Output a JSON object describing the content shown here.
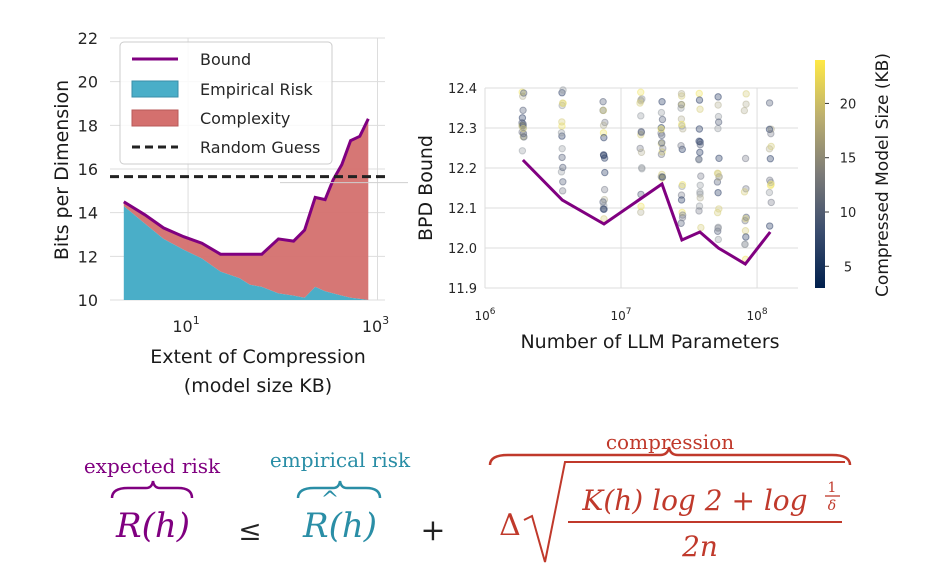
{
  "chart_data": [
    {
      "type": "area",
      "xlabel_line1": "Extent of Compression",
      "xlabel_line2": "(model size KB)",
      "ylabel": "Bits per Dimension",
      "xscale": "log",
      "xlim": [
        1.5,
        1200
      ],
      "ylim": [
        10,
        22
      ],
      "yticks": [
        "10",
        "12",
        "14",
        "16",
        "18",
        "20",
        "22"
      ],
      "xticks": [
        {
          "base": "10",
          "exp": "1",
          "value": 10
        },
        {
          "base": "10",
          "exp": "3",
          "value": 1000
        }
      ],
      "grid": true,
      "legend_position": "top-left",
      "random_guess": 15.65,
      "x": [
        2.1,
        3.5,
        5.5,
        9,
        14,
        22,
        35,
        45,
        60,
        90,
        130,
        170,
        220,
        280,
        340,
        420,
        520,
        650,
        800
      ],
      "empirical_risk": [
        14.3,
        13.5,
        12.8,
        12.3,
        11.9,
        11.3,
        11.0,
        10.7,
        10.6,
        10.3,
        10.2,
        10.1,
        10.6,
        10.4,
        10.3,
        10.2,
        10.1,
        10.05,
        10.0
      ],
      "bound": [
        14.5,
        13.9,
        13.3,
        12.9,
        12.6,
        12.1,
        12.1,
        12.1,
        12.1,
        12.8,
        12.7,
        13.2,
        14.7,
        14.6,
        15.5,
        16.2,
        17.3,
        17.5,
        18.3
      ],
      "series": [
        {
          "name": "Bound",
          "color": "#800080"
        },
        {
          "name": "Empirical Risk",
          "color": "#4aaec8"
        },
        {
          "name": "Complexity",
          "color": "#d4706e"
        },
        {
          "name": "Random Guess",
          "color": "#222222"
        }
      ]
    },
    {
      "type": "scatter",
      "xlabel": "Number of LLM Parameters",
      "ylabel": "BPD Bound",
      "xscale": "log",
      "xlim": [
        1000000,
        200000000
      ],
      "ylim": [
        11.9,
        12.4
      ],
      "yticks": [
        "11.9",
        "12.0",
        "12.1",
        "12.2",
        "12.3",
        "12.4"
      ],
      "xticks": [
        {
          "base": "10",
          "exp": "6",
          "value": 1000000
        },
        {
          "base": "10",
          "exp": "7",
          "value": 10000000
        },
        {
          "base": "10",
          "exp": "8",
          "value": 100000000
        }
      ],
      "grid": true,
      "line_color": "#800080",
      "line_x": [
        1900000,
        3700000,
        7500000,
        20000000,
        28000000,
        38000000,
        52000000,
        82000000,
        125000000
      ],
      "line_y": [
        12.22,
        12.12,
        12.06,
        12.16,
        12.02,
        12.04,
        12.0,
        11.96,
        12.04
      ],
      "scatter_columns": [
        1900000,
        3700000,
        7500000,
        14000000,
        20000000,
        28000000,
        38000000,
        52000000,
        82000000,
        125000000
      ],
      "colorbar": {
        "label": "Compressed Model Size (KB)",
        "ticks": [
          "5",
          "10",
          "15",
          "20"
        ],
        "range": [
          3,
          24
        ]
      }
    }
  ],
  "formula": {
    "expected_risk_label": "expected risk",
    "expected_risk_symbol": "R(h)",
    "leq": "≤",
    "empirical_risk_label": "empirical risk",
    "empirical_risk_symbol": "R(h)",
    "hat": "^",
    "plus": "+",
    "compression_label": "compression",
    "delta": "Δ",
    "numerator": "K(h) log 2 + log",
    "frac_num": "1",
    "frac_den": "δ",
    "denominator": "2n",
    "colors": {
      "expected": "#800080",
      "empirical": "#2a8ea6",
      "compression": "#c0392b"
    }
  }
}
